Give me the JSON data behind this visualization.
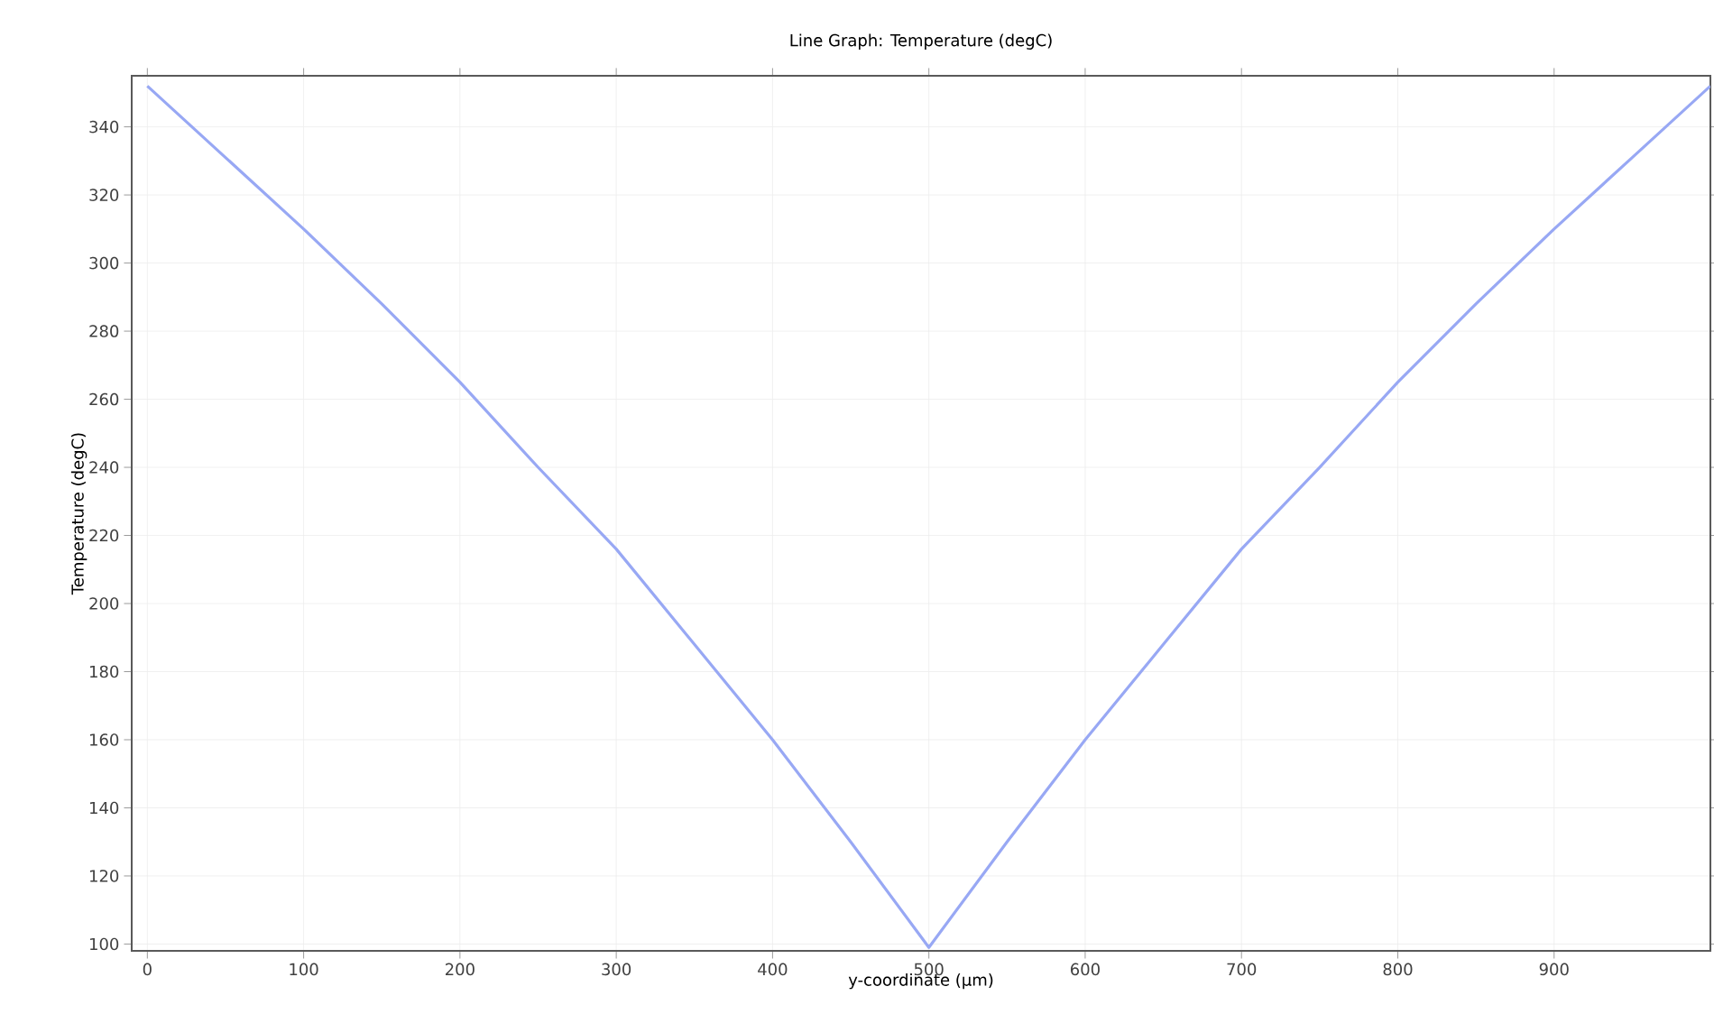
{
  "chart_data": {
    "type": "line",
    "title": "Line Graph: Temperature (degC)",
    "xlabel": "y-coordinate (µm)",
    "ylabel": "Temperature (degC)",
    "x": [
      0,
      50,
      100,
      150,
      200,
      250,
      300,
      350,
      400,
      450,
      500,
      550,
      600,
      650,
      700,
      750,
      800,
      850,
      900,
      950,
      1000
    ],
    "series": [
      {
        "color": "#98a8f4",
        "values": [
          352,
          331,
          310,
          288,
          265,
          240,
          216,
          188,
          160,
          130,
          99,
          130,
          160,
          188,
          216,
          240,
          265,
          288,
          310,
          331,
          352
        ]
      }
    ],
    "xlim": [
      -10,
      1000
    ],
    "ylim": [
      98,
      355
    ],
    "xticks": [
      0,
      100,
      200,
      300,
      400,
      500,
      600,
      700,
      800,
      900
    ],
    "yticks": [
      100,
      120,
      140,
      160,
      180,
      200,
      220,
      240,
      260,
      280,
      300,
      320,
      340
    ],
    "grid": true,
    "marker": "none",
    "line_style": "solid"
  }
}
